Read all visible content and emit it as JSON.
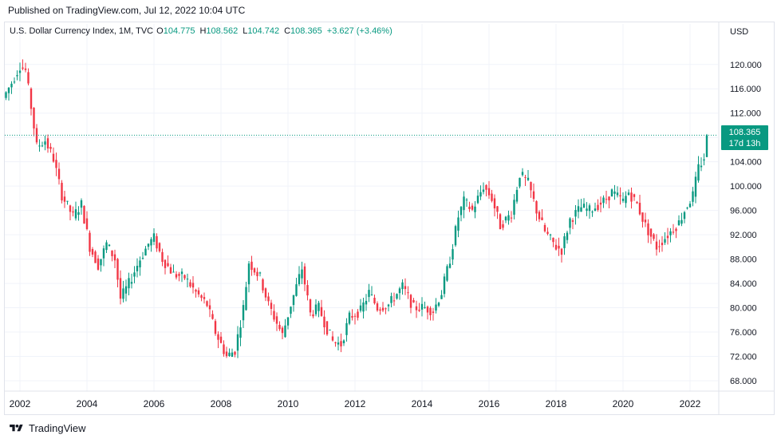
{
  "header": {
    "published": "Published on TradingView.com, Jul 12, 2022 10:04 UTC"
  },
  "legend": {
    "title": "U.S. Dollar Currency Index, 1M, TVC",
    "open_label": "O",
    "open": "104.775",
    "high_label": "H",
    "high": "108.562",
    "low_label": "L",
    "low": "104.742",
    "close_label": "C",
    "close": "108.365",
    "change": "+3.627 (+3.46%)"
  },
  "axis": {
    "currency": "USD"
  },
  "last_price": {
    "value": "108.365",
    "countdown": "17d 13h"
  },
  "footer": {
    "brand": "TradingView"
  },
  "colors": {
    "up": "#089981",
    "down": "#f23645",
    "grid": "#f0f3fa",
    "axis_text": "#131722"
  },
  "chart_data": {
    "type": "candlestick",
    "timeframe": "1M",
    "x_range": [
      "2001-07",
      "2022-07"
    ],
    "ylim": [
      65,
      123
    ],
    "y_ticks": [
      68,
      72,
      76,
      80,
      84,
      88,
      92,
      96,
      100,
      104,
      108,
      112,
      116,
      120
    ],
    "y_tick_labels": [
      "68.000",
      "72.000",
      "76.000",
      "80.000",
      "84.000",
      "88.000",
      "92.000",
      "96.000",
      "100.000",
      "104.000",
      "108.000",
      "112.000",
      "116.000",
      "120.000"
    ],
    "x_ticks": [
      "2002",
      "2004",
      "2006",
      "2008",
      "2010",
      "2012",
      "2014",
      "2016",
      "2018",
      "2020",
      "2022"
    ],
    "last_value": 108.365,
    "series": [
      {
        "date": "2001-07",
        "close": 114.5
      },
      {
        "date": "2001-10",
        "close": 117.0
      },
      {
        "date": "2002-01",
        "close": 119.8
      },
      {
        "date": "2002-03",
        "close": 119.0
      },
      {
        "date": "2002-05",
        "close": 113.0
      },
      {
        "date": "2002-07",
        "close": 106.5
      },
      {
        "date": "2002-10",
        "close": 107.5
      },
      {
        "date": "2003-01",
        "close": 104.5
      },
      {
        "date": "2003-04",
        "close": 98.5
      },
      {
        "date": "2003-08",
        "close": 95.0
      },
      {
        "date": "2003-11",
        "close": 97.0
      },
      {
        "date": "2004-02",
        "close": 90.0
      },
      {
        "date": "2004-05",
        "close": 87.0
      },
      {
        "date": "2004-08",
        "close": 90.5
      },
      {
        "date": "2004-11",
        "close": 88.0
      },
      {
        "date": "2005-01",
        "close": 81.5
      },
      {
        "date": "2005-04",
        "close": 84.0
      },
      {
        "date": "2005-08",
        "close": 88.0
      },
      {
        "date": "2005-11",
        "close": 90.5
      },
      {
        "date": "2006-01",
        "close": 91.5
      },
      {
        "date": "2006-04",
        "close": 88.0
      },
      {
        "date": "2006-08",
        "close": 85.5
      },
      {
        "date": "2006-12",
        "close": 85.0
      },
      {
        "date": "2007-04",
        "close": 82.5
      },
      {
        "date": "2007-08",
        "close": 80.5
      },
      {
        "date": "2007-11",
        "close": 76.0
      },
      {
        "date": "2008-03",
        "close": 72.0
      },
      {
        "date": "2008-06",
        "close": 73.0
      },
      {
        "date": "2008-09",
        "close": 80.0
      },
      {
        "date": "2008-11",
        "close": 87.5
      },
      {
        "date": "2009-03",
        "close": 85.0
      },
      {
        "date": "2009-06",
        "close": 80.5
      },
      {
        "date": "2009-09",
        "close": 77.5
      },
      {
        "date": "2009-11",
        "close": 75.5
      },
      {
        "date": "2010-02",
        "close": 80.5
      },
      {
        "date": "2010-06",
        "close": 86.5
      },
      {
        "date": "2010-09",
        "close": 79.0
      },
      {
        "date": "2010-12",
        "close": 80.0
      },
      {
        "date": "2011-03",
        "close": 76.5
      },
      {
        "date": "2011-05",
        "close": 74.5
      },
      {
        "date": "2011-08",
        "close": 74.0
      },
      {
        "date": "2011-11",
        "close": 78.5
      },
      {
        "date": "2012-03",
        "close": 79.5
      },
      {
        "date": "2012-06",
        "close": 82.5
      },
      {
        "date": "2012-09",
        "close": 80.0
      },
      {
        "date": "2013-01",
        "close": 80.5
      },
      {
        "date": "2013-06",
        "close": 83.5
      },
      {
        "date": "2013-10",
        "close": 80.0
      },
      {
        "date": "2014-02",
        "close": 80.0
      },
      {
        "date": "2014-05",
        "close": 79.5
      },
      {
        "date": "2014-08",
        "close": 82.5
      },
      {
        "date": "2014-11",
        "close": 88.0
      },
      {
        "date": "2015-02",
        "close": 95.0
      },
      {
        "date": "2015-04",
        "close": 97.5
      },
      {
        "date": "2015-07",
        "close": 96.0
      },
      {
        "date": "2015-11",
        "close": 100.0
      },
      {
        "date": "2016-02",
        "close": 98.0
      },
      {
        "date": "2016-05",
        "close": 93.5
      },
      {
        "date": "2016-09",
        "close": 95.5
      },
      {
        "date": "2016-12",
        "close": 102.0
      },
      {
        "date": "2017-03",
        "close": 100.5
      },
      {
        "date": "2017-06",
        "close": 96.0
      },
      {
        "date": "2017-09",
        "close": 92.5
      },
      {
        "date": "2018-01",
        "close": 90.0
      },
      {
        "date": "2018-03",
        "close": 89.5
      },
      {
        "date": "2018-06",
        "close": 94.5
      },
      {
        "date": "2018-10",
        "close": 96.5
      },
      {
        "date": "2019-01",
        "close": 96.0
      },
      {
        "date": "2019-06",
        "close": 97.5
      },
      {
        "date": "2019-09",
        "close": 99.0
      },
      {
        "date": "2020-01",
        "close": 97.5
      },
      {
        "date": "2020-03",
        "close": 99.0
      },
      {
        "date": "2020-06",
        "close": 97.0
      },
      {
        "date": "2020-09",
        "close": 93.5
      },
      {
        "date": "2021-01",
        "close": 90.0
      },
      {
        "date": "2021-04",
        "close": 91.5
      },
      {
        "date": "2021-06",
        "close": 92.5
      },
      {
        "date": "2021-09",
        "close": 94.0
      },
      {
        "date": "2021-11",
        "close": 96.0
      },
      {
        "date": "2022-02",
        "close": 98.5
      },
      {
        "date": "2022-04",
        "close": 103.0
      },
      {
        "date": "2022-06",
        "close": 104.7
      },
      {
        "date": "2022-07",
        "close": 108.365
      }
    ]
  }
}
